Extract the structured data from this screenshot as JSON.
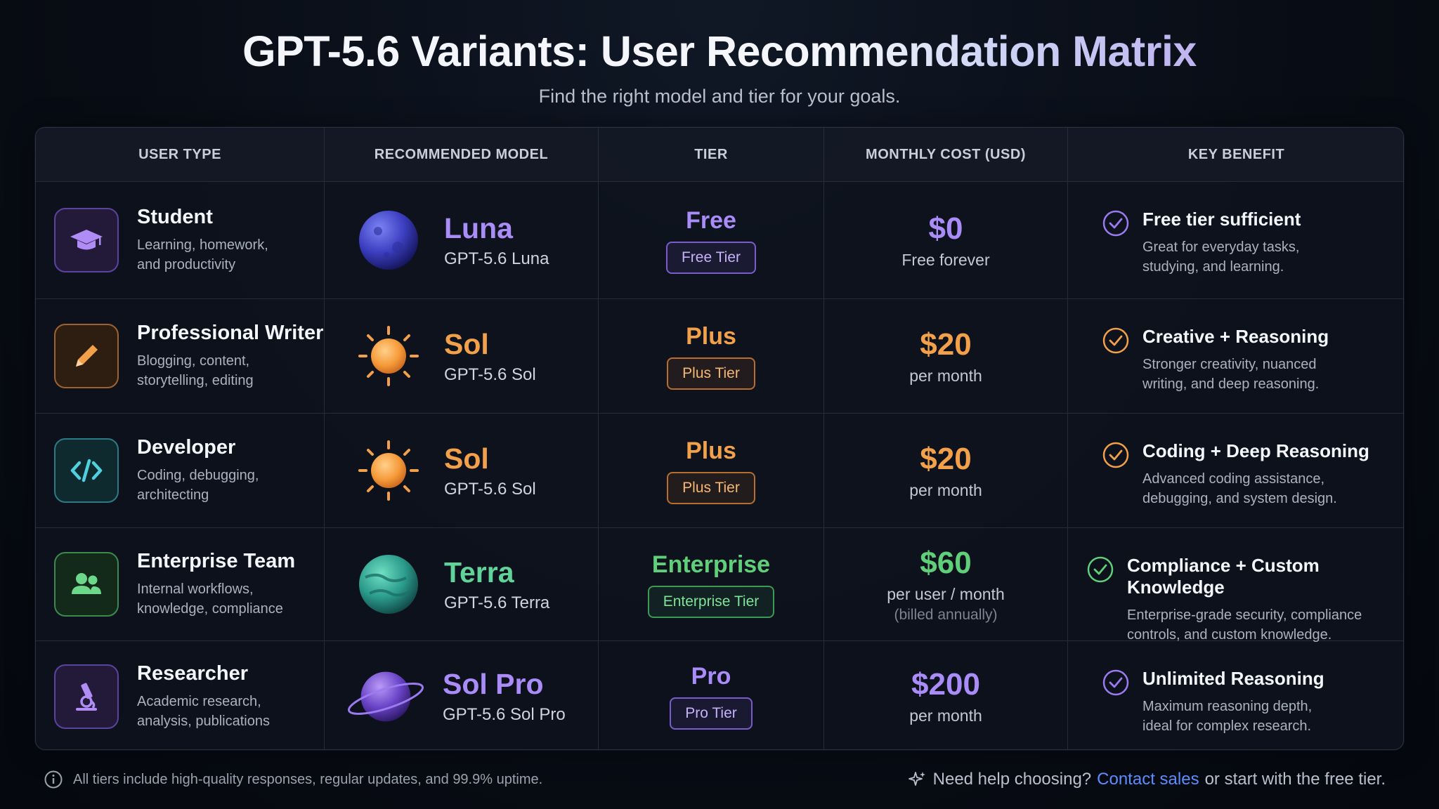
{
  "header": {
    "title_part1": "GPT-5.6 Variants: User Recom",
    "title_part2": "mendation Matrix",
    "subtitle": "Find the right model and tier for your goals."
  },
  "columns": [
    "USER TYPE",
    "RECOMMENDED MODEL",
    "TIER",
    "MONTHLY COST (USD)",
    "KEY BENEFIT"
  ],
  "rows": [
    {
      "user": {
        "name": "Student",
        "desc1": "Learning, homework,",
        "desc2": "and productivity",
        "icon": "graduation-cap-icon"
      },
      "model": {
        "name": "Luna",
        "full": "GPT-5.6 Luna",
        "icon": "moon-planet-icon"
      },
      "tier": {
        "name": "Free",
        "badge": "Free Tier"
      },
      "cost": {
        "value": "$0",
        "note": "Free forever",
        "note2": ""
      },
      "benefit": {
        "head": "Free tier sufficient",
        "desc1": "Great for everyday tasks,",
        "desc2": "studying, and learning."
      },
      "accent": "#a779f2"
    },
    {
      "user": {
        "name": "Professional Writer",
        "desc1": "Blogging, content,",
        "desc2": "storytelling, editing",
        "icon": "pencil-icon"
      },
      "model": {
        "name": "Sol",
        "full": "GPT-5.6 Sol",
        "icon": "sun-icon"
      },
      "tier": {
        "name": "Plus",
        "badge": "Plus Tier"
      },
      "cost": {
        "value": "$20",
        "note": "per month",
        "note2": ""
      },
      "benefit": {
        "head": "Creative + Reasoning",
        "desc1": "Stronger creativity, nuanced",
        "desc2": "writing, and deep reasoning."
      },
      "accent": "#f2a04a"
    },
    {
      "user": {
        "name": "Developer",
        "desc1": "Coding, debugging,",
        "desc2": "architecting",
        "icon": "code-icon"
      },
      "model": {
        "name": "Sol",
        "full": "GPT-5.6 Sol",
        "icon": "sun-icon"
      },
      "tier": {
        "name": "Plus",
        "badge": "Plus Tier"
      },
      "cost": {
        "value": "$20",
        "note": "per month",
        "note2": ""
      },
      "benefit": {
        "head": "Coding + Deep Reasoning",
        "desc1": "Advanced coding assistance,",
        "desc2": "debugging, and system design."
      },
      "accent": "#f2a04a"
    },
    {
      "user": {
        "name": "Enterprise Team",
        "desc1": "Internal workflows,",
        "desc2": "knowledge, compliance",
        "icon": "team-icon"
      },
      "model": {
        "name": "Terra",
        "full": "GPT-5.6 Terra",
        "icon": "earth-planet-icon"
      },
      "tier": {
        "name": "Enterprise",
        "badge": "Enterprise Tier"
      },
      "cost": {
        "value": "$60",
        "note": "per user / month",
        "note2": "(billed annually)"
      },
      "benefit": {
        "head": "Compliance + Custom Knowledge",
        "desc1": "Enterprise-grade security, compliance",
        "desc2": "controls, and custom knowledge."
      },
      "accent": "#5fcf7a"
    },
    {
      "user": {
        "name": "Researcher",
        "desc1": "Academic research,",
        "desc2": "analysis, publications",
        "icon": "microscope-icon"
      },
      "model": {
        "name": "Sol Pro",
        "full": "GPT-5.6 Sol Pro",
        "icon": "ringed-planet-icon"
      },
      "tier": {
        "name": "Pro",
        "badge": "Pro Tier"
      },
      "cost": {
        "value": "$200",
        "note": "per month",
        "note2": ""
      },
      "benefit": {
        "head": "Unlimited Reasoning",
        "desc1": "Maximum reasoning depth,",
        "desc2": "ideal for complex research."
      },
      "accent": "#a779f2"
    }
  ],
  "footer": {
    "note": "All tiers include high-quality responses, regular updates, and 99.9% uptime.",
    "help_prefix": "Need help choosing?",
    "help_link": "Contact sales",
    "help_suffix": "or start with the free tier."
  }
}
